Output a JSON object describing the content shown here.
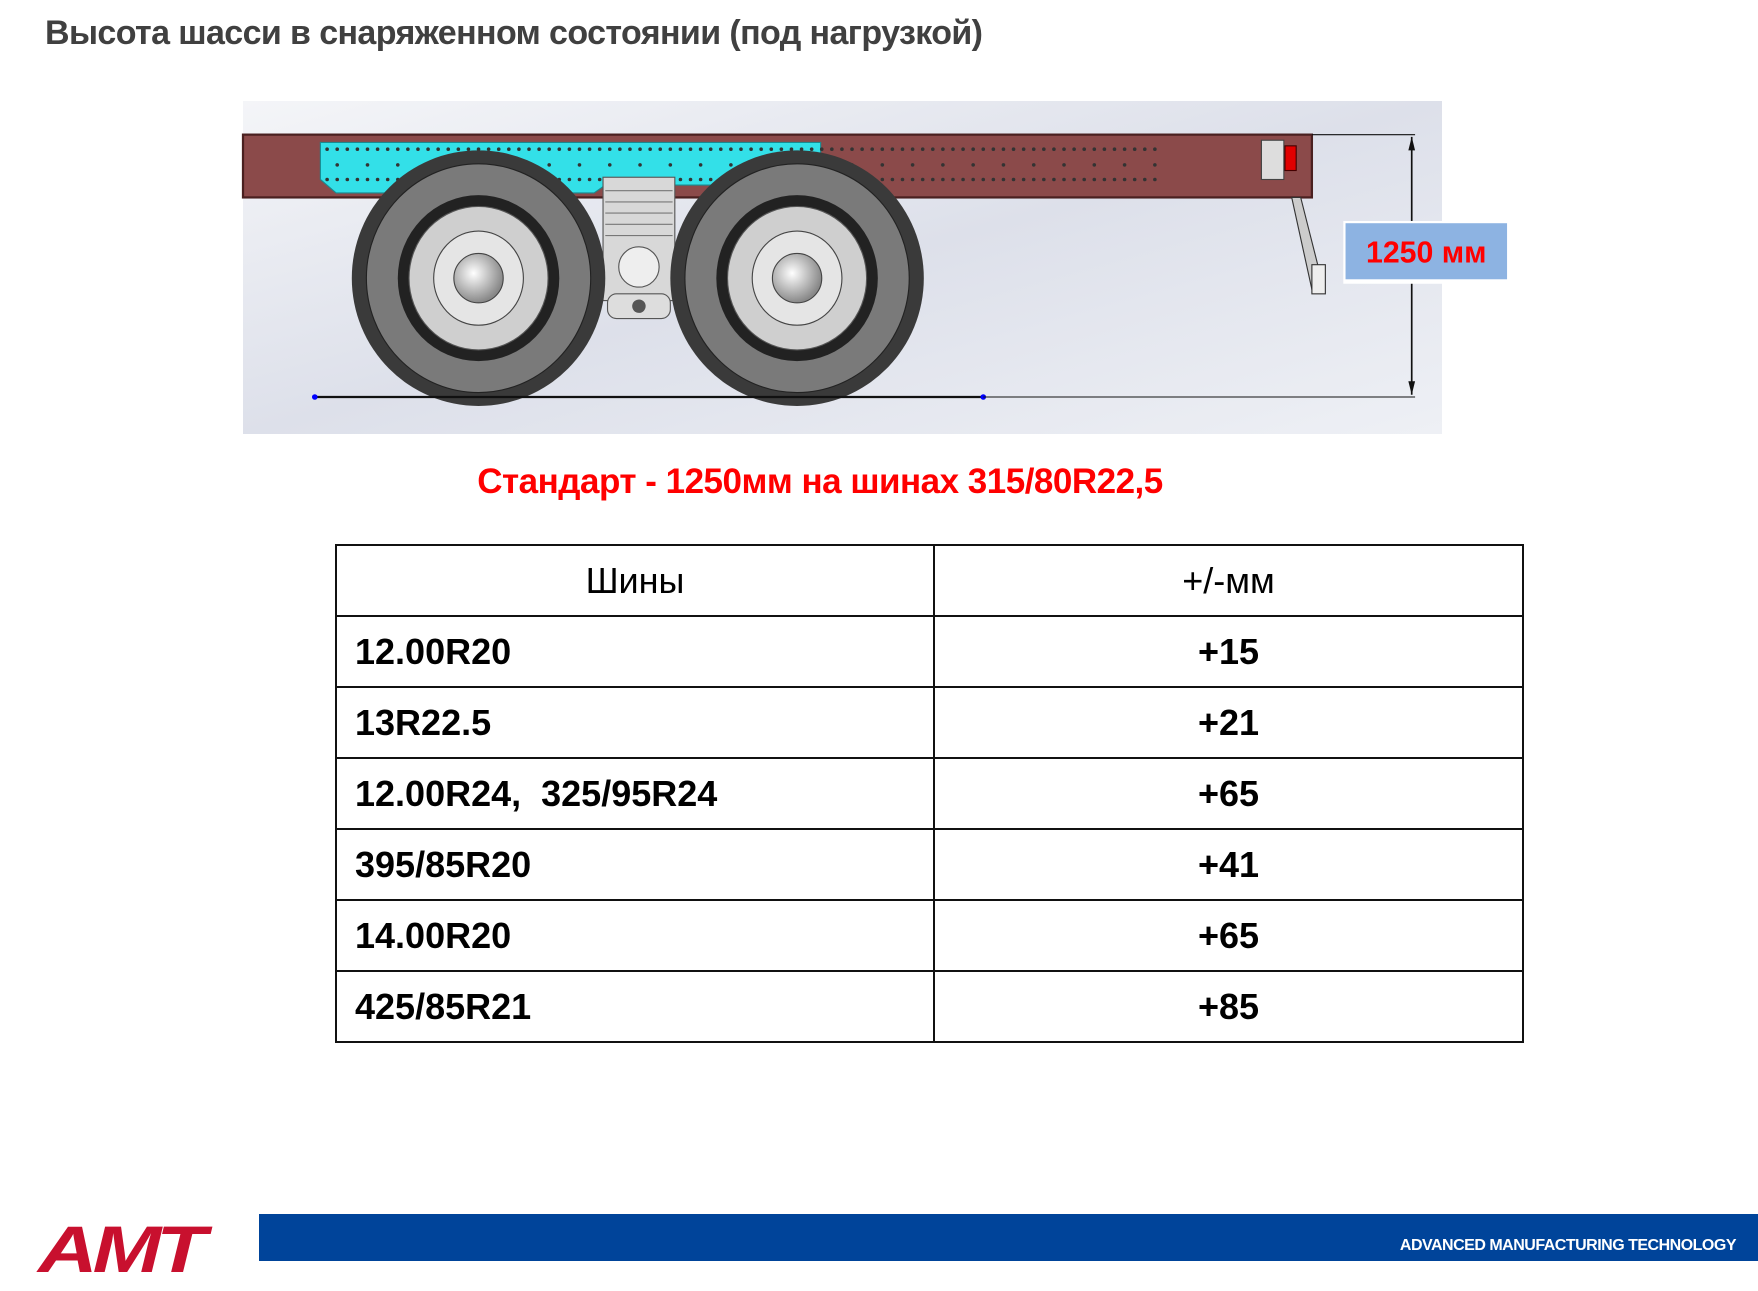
{
  "title": "Высота шасси в снаряженном состоянии (под нагрузкой)",
  "drawing": {
    "dimension_label": "1250 мм",
    "frame_color": "#8b4a4a",
    "highlight_color": "#33e0e8",
    "label_bg": "#8db3e2"
  },
  "subtitle": "Стандарт - 1250мм на шинах 315/80R22,5",
  "table": {
    "headers": [
      "Шины",
      "+/-мм"
    ],
    "rows": [
      {
        "tire": "12.00R20",
        "delta": "+15"
      },
      {
        "tire": "13R22.5",
        "delta": "+21"
      },
      {
        "tire": "12.00R24,  325/95R24",
        "delta": "+65"
      },
      {
        "tire": "395/85R20",
        "delta": "+41"
      },
      {
        "tire": "14.00R20",
        "delta": "+65"
      },
      {
        "tire": "425/85R21",
        "delta": "+85"
      }
    ]
  },
  "footer": {
    "logo": "AMT",
    "tagline": "ADVANCED MANUFACTURING TECHNOLOGY",
    "bar_color": "#00449a",
    "logo_color": "#c8102e"
  }
}
